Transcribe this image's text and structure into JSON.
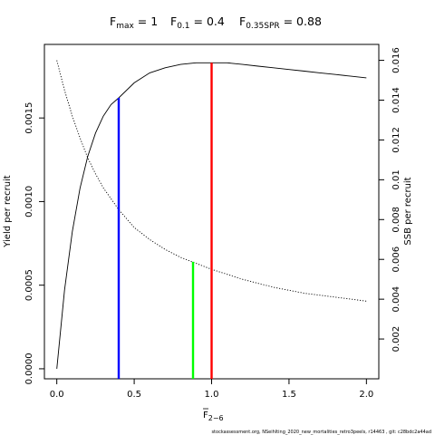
{
  "chart_data": {
    "type": "line",
    "title": {
      "fmax": {
        "main": "F",
        "sub": "max",
        "rest": " = 1"
      },
      "f01": {
        "main": "F",
        "sub": "0.1",
        "rest": " = 0.4"
      },
      "fspr": {
        "main": "F",
        "sub": "0.35SPR",
        "rest": " = 0.88"
      }
    },
    "xlabel": {
      "main": "F",
      "sub": "2−6"
    },
    "ylabel_left": "Yield per recruit",
    "ylabel_right": "SSB per recruit",
    "xlim": [
      -0.08,
      2.08
    ],
    "ylim_left": [
      -6e-05,
      0.00194
    ],
    "ylim_right": [
      0,
      0.0168
    ],
    "x_ticks": [
      0,
      0.5,
      1,
      1.5,
      2
    ],
    "x_tick_labels": [
      "0.0",
      "0.5",
      "1.0",
      "1.5",
      "2.0"
    ],
    "y_left_ticks": [
      0,
      0.0005,
      0.001,
      0.0015
    ],
    "y_left_tick_labels": [
      "0.0000",
      "0.0005",
      "0.0010",
      "0.0015"
    ],
    "y_right_ticks": [
      0.002,
      0.004,
      0.006,
      0.008,
      0.01,
      0.012,
      0.014,
      0.016
    ],
    "y_right_tick_labels": [
      "0.002",
      "0.004",
      "0.006",
      "0.008",
      "0.01",
      "0.012",
      "0.014",
      "0.016"
    ],
    "series": [
      {
        "axis": "left",
        "style": "solid",
        "x": [
          0,
          0.05,
          0.1,
          0.15,
          0.2,
          0.25,
          0.3,
          0.35,
          0.4,
          0.5,
          0.6,
          0.7,
          0.8,
          0.9,
          1.0,
          1.1,
          1.2,
          1.3,
          1.4,
          1.5,
          1.6,
          1.7,
          1.8,
          1.9,
          2.0
        ],
        "y": [
          0,
          0.00047,
          0.00082,
          0.00108,
          0.00127,
          0.00141,
          0.00151,
          0.00158,
          0.00162,
          0.00171,
          0.00177,
          0.0018,
          0.00182,
          0.00183,
          0.00183,
          0.00183,
          0.00182,
          0.00181,
          0.0018,
          0.00179,
          0.00178,
          0.00177,
          0.00176,
          0.00175,
          0.00174
        ]
      },
      {
        "axis": "right",
        "style": "dotted",
        "x": [
          0,
          0.05,
          0.1,
          0.15,
          0.2,
          0.25,
          0.3,
          0.4,
          0.5,
          0.6,
          0.7,
          0.8,
          0.9,
          1.0,
          1.2,
          1.4,
          1.6,
          1.8,
          2.0
        ],
        "y": [
          0.016,
          0.0145,
          0.0132,
          0.0121,
          0.0111,
          0.0103,
          0.0096,
          0.0085,
          0.0076,
          0.007,
          0.0065,
          0.0061,
          0.0058,
          0.0055,
          0.005,
          0.0046,
          0.0043,
          0.0041,
          0.0039
        ]
      }
    ],
    "reference_lines": [
      {
        "x": 0.4,
        "y_top": 0.00162,
        "color": "#0000ff"
      },
      {
        "x": 0.88,
        "y_top": 0.00064,
        "color": "#00ff00"
      },
      {
        "x": 1.0,
        "y_top": 0.00183,
        "color": "#ff0000"
      }
    ],
    "footnote": "stockassessment.org,  NSeihlting_2020_new_mortalities_retro3peels,  r14463 ,  git: c28bdc2a44ad"
  }
}
